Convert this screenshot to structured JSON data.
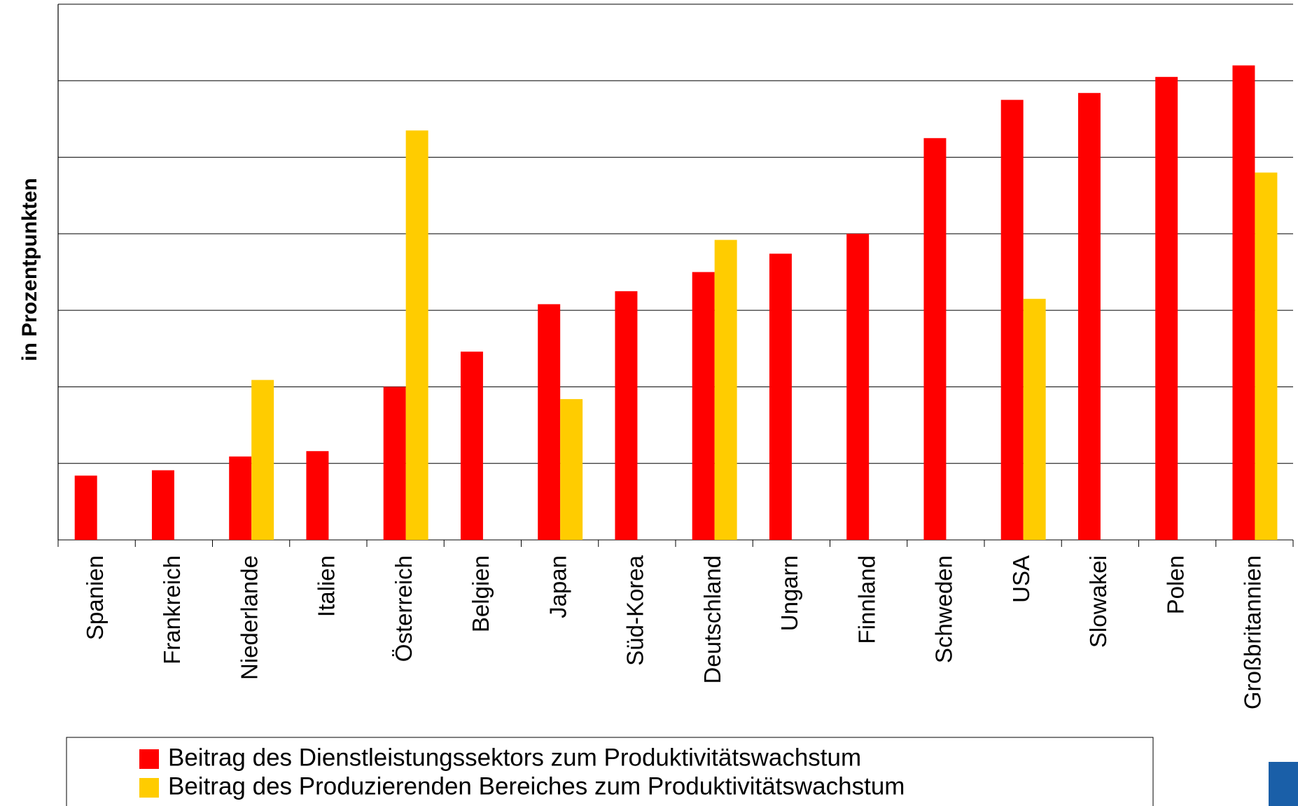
{
  "chart_data": {
    "type": "bar",
    "y_label": "in Prozentpunkten",
    "categories": [
      "Spanien",
      "Frankreich",
      "Niederlande",
      "Italien",
      "Österreich",
      "Belgien",
      "Japan",
      "Süd-Korea",
      "Deutschland",
      "Ungarn",
      "Finnland",
      "Schweden",
      "USA",
      "Slowakei",
      "Polen",
      "Großbritannien"
    ],
    "series": [
      {
        "name": "Beitrag des Dienstleistungssektors zum Produktivitätswachstum",
        "color": "#ff0000",
        "values": [
          0.84,
          0.91,
          1.09,
          1.16,
          2.0,
          2.46,
          3.08,
          3.25,
          3.5,
          3.74,
          4.0,
          5.25,
          5.75,
          5.84,
          6.05,
          6.2
        ]
      },
      {
        "name": "Beitrag des Produzierenden Bereiches zum Produktivitätswachstum",
        "color": "#ffcc00",
        "values": [
          null,
          null,
          2.09,
          null,
          5.35,
          null,
          1.84,
          null,
          3.92,
          null,
          null,
          null,
          3.15,
          null,
          null,
          4.8
        ]
      }
    ],
    "ylim": [
      0,
      7
    ],
    "yticks": [
      0,
      1,
      2,
      3,
      4,
      5,
      6,
      7
    ],
    "grid": true,
    "legend": "bottom"
  }
}
